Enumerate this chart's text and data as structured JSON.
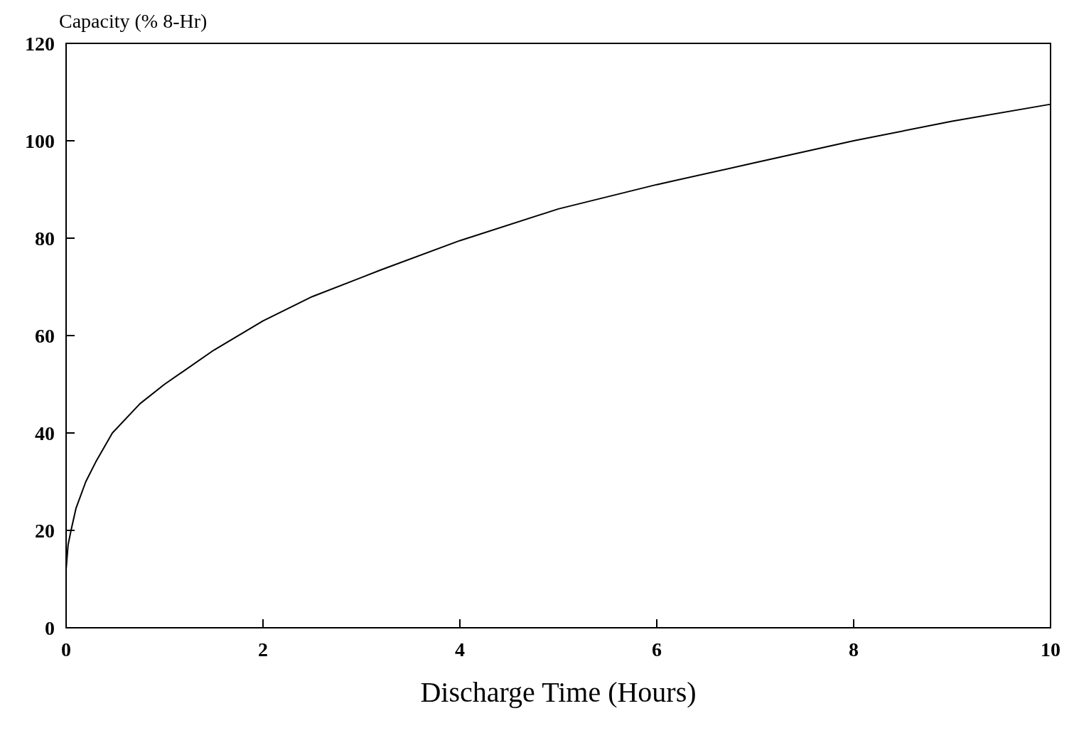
{
  "chart_data": {
    "type": "line",
    "xlabel": "Discharge Time (Hours)",
    "ylabel": "Capacity (% 8-Hr)",
    "x": [
      0,
      0.02,
      0.05,
      0.1,
      0.2,
      0.3,
      0.47,
      0.75,
      1,
      1.5,
      2,
      2.5,
      3.2,
      4,
      5,
      6,
      7,
      8,
      9,
      10
    ],
    "series": [
      {
        "color": "#000000",
        "values": [
          12,
          17,
          20,
          24.5,
          30,
          34,
          40,
          46,
          50,
          57,
          63,
          68,
          73.5,
          79.5,
          86,
          91,
          95.5,
          100,
          104,
          107.5
        ]
      }
    ],
    "xlim": [
      0,
      10
    ],
    "xticks": [
      0,
      2,
      4,
      6,
      8,
      10
    ],
    "ylim": [
      0,
      120
    ],
    "yticks": [
      0,
      20,
      40,
      60,
      80,
      100,
      120
    ],
    "marker": "none",
    "line_style": "solid"
  }
}
